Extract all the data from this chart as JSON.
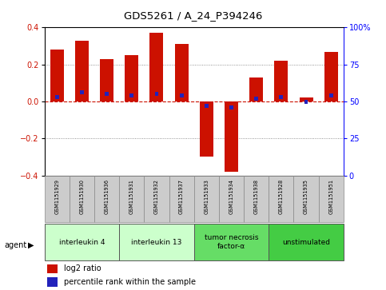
{
  "title": "GDS5261 / A_24_P394246",
  "samples": [
    "GSM1151929",
    "GSM1151930",
    "GSM1151936",
    "GSM1151931",
    "GSM1151932",
    "GSM1151937",
    "GSM1151933",
    "GSM1151934",
    "GSM1151938",
    "GSM1151928",
    "GSM1151935",
    "GSM1151951"
  ],
  "log2_ratio": [
    0.28,
    0.33,
    0.23,
    0.25,
    0.37,
    0.31,
    -0.3,
    -0.38,
    0.13,
    0.22,
    0.02,
    0.27
  ],
  "percentile_rank": [
    53,
    56,
    55,
    54,
    55,
    54,
    47,
    46,
    52,
    53,
    50,
    54
  ],
  "bar_color": "#cc1100",
  "percentile_color": "#2222bb",
  "agents": [
    {
      "label": "interleukin 4",
      "start": 0,
      "end": 2,
      "color": "#ccffcc"
    },
    {
      "label": "interleukin 13",
      "start": 3,
      "end": 5,
      "color": "#ccffcc"
    },
    {
      "label": "tumor necrosis\nfactor-α",
      "start": 6,
      "end": 8,
      "color": "#66dd66"
    },
    {
      "label": "unstimulated",
      "start": 9,
      "end": 11,
      "color": "#44cc44"
    }
  ],
  "ylim": [
    -0.4,
    0.4
  ],
  "y2lim": [
    0,
    100
  ],
  "yticks_left": [
    -0.4,
    -0.2,
    0.0,
    0.2,
    0.4
  ],
  "yticks_right": [
    0,
    25,
    50,
    75,
    100
  ],
  "yticks_right_labels": [
    "0",
    "25",
    "50",
    "75",
    "100%"
  ],
  "bar_width": 0.55,
  "background_color": "#ffffff",
  "plot_bg_color": "#ffffff",
  "zero_line_color": "#cc1100",
  "agent_label": "agent",
  "legend_items": [
    {
      "color": "#cc1100",
      "label": "log2 ratio"
    },
    {
      "color": "#2222bb",
      "label": "percentile rank within the sample"
    }
  ]
}
